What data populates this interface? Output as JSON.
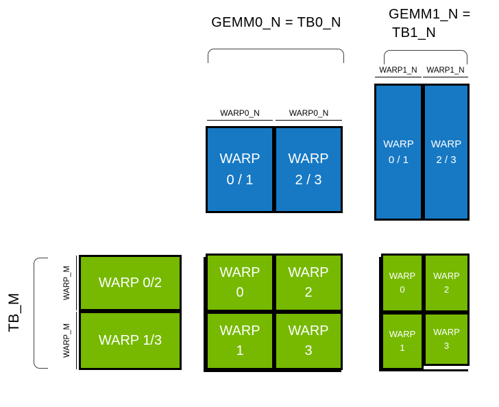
{
  "colors": {
    "blue": "#1779c4",
    "green": "#76b900",
    "box_border": "#000000",
    "bracket": "#3f3f3f",
    "box_text": "#ffffff",
    "label_text": "#000000"
  },
  "headers": {
    "gemm0": "GEMM0_N = TB0_N",
    "gemm1_line1": "GEMM1_N =",
    "gemm1_line2": "TB1_N"
  },
  "dim_labels": {
    "warp0_n": "WARP0_N",
    "warp1_n": "WARP1_N",
    "warp_m": "WARP_M",
    "tb_m": "TB_M"
  },
  "gemm0_boxes": [
    {
      "line1": "WARP",
      "line2": "0 / 1"
    },
    {
      "line1": "WARP",
      "line2": "2 / 3"
    }
  ],
  "gemm1_boxes": [
    {
      "line1": "WARP",
      "line2": "0 / 1"
    },
    {
      "line1": "WARP",
      "line2": "2 / 3"
    }
  ],
  "left_boxes": [
    {
      "label": "WARP 0/2"
    },
    {
      "label": "WARP 1/3"
    }
  ],
  "center_boxes": [
    {
      "line1": "WARP",
      "line2": "0"
    },
    {
      "line1": "WARP",
      "line2": "2"
    },
    {
      "line1": "WARP",
      "line2": "1"
    },
    {
      "line1": "WARP",
      "line2": "3"
    }
  ],
  "right_boxes": [
    {
      "line1": "WARP",
      "line2": "0"
    },
    {
      "line1": "WARP",
      "line2": "2"
    },
    {
      "line1": "WARP",
      "line2": "1"
    },
    {
      "line1": "WARP",
      "line2": "3"
    }
  ]
}
